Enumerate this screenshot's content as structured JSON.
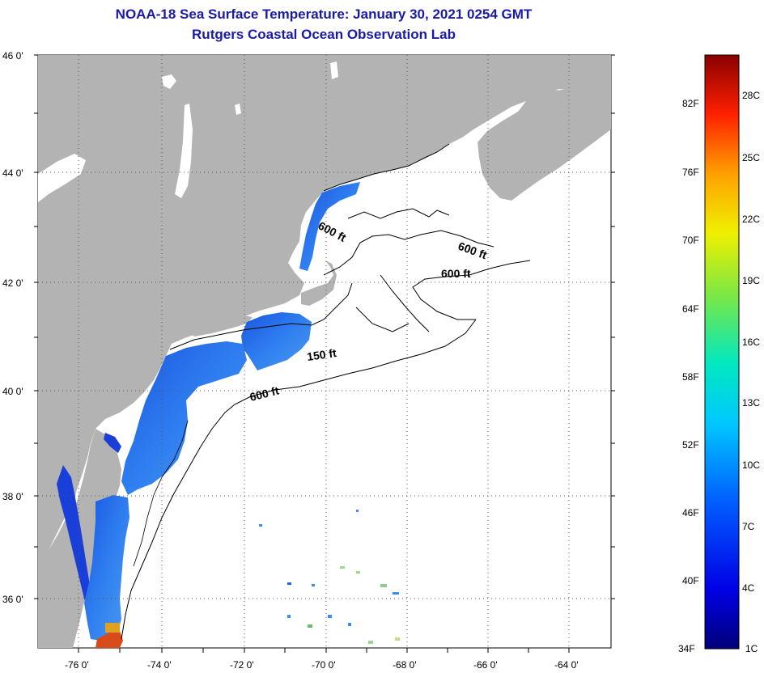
{
  "header": {
    "title": "NOAA-18 Sea Surface Temperature:  January 30, 2021 0254 GMT",
    "subtitle": "Rutgers Coastal Ocean Observation Lab"
  },
  "axes": {
    "lon_labels": [
      "-76 0'",
      "-74 0'",
      "-72 0'",
      "-70 0'",
      "-68 0'",
      "-66 0'",
      "-64 0'"
    ],
    "lat_labels": [
      "46 0'",
      "44 0'",
      "42 0'",
      "40 0'",
      "38 0'",
      "36 0'"
    ]
  },
  "contours": {
    "labels": [
      "600 ft",
      "600 ft",
      "600 ft",
      "150 ft",
      "600 ft"
    ]
  },
  "colorbar": {
    "fahrenheit": [
      "82F",
      "76F",
      "70F",
      "64F",
      "58F",
      "52F",
      "46F",
      "40F",
      "34F"
    ],
    "celsius": [
      "28C",
      "25C",
      "22C",
      "19C",
      "16C",
      "13C",
      "10C",
      "7C",
      "4C",
      "1C"
    ]
  },
  "colors": {
    "land": "#b3b3b3",
    "ocean_nodata": "#ffffff",
    "title": "#1a1aa8",
    "sst_cold": "#1f5ee8",
    "sst_mid": "#3a8ef0",
    "sst_warm": "#d84a18"
  }
}
